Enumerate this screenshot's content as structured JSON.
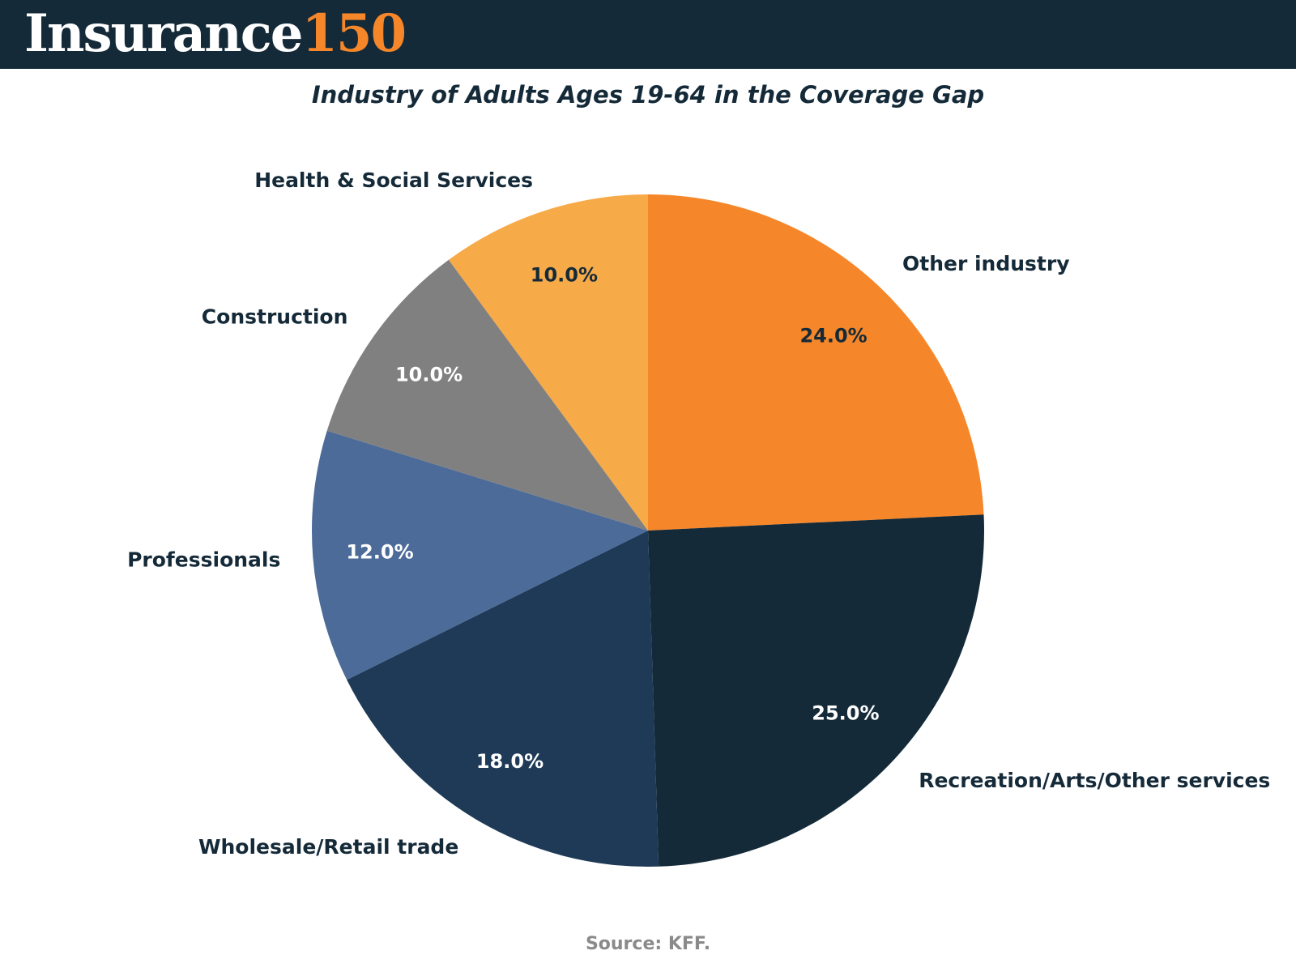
{
  "header": {
    "logo_word": "Insurance",
    "logo_number": "150",
    "background_color": "#152a38",
    "logo_word_color": "#ffffff",
    "logo_number_color": "#f5872a"
  },
  "chart_data": {
    "type": "pie",
    "title": "Industry of Adults Ages 19-64 in the Coverage Gap",
    "start": "12 o'clock, clockwise",
    "slices": [
      {
        "label": "Other industry",
        "value": 24.0,
        "value_label": "24.0%",
        "color": "#f5872a",
        "value_label_color": "#152a38"
      },
      {
        "label": "Recreation/Arts/Other services",
        "value": 25.0,
        "value_label": "25.0%",
        "color": "#152a38",
        "value_label_color": "#ffffff"
      },
      {
        "label": "Wholesale/Retail trade",
        "value": 18.0,
        "value_label": "18.0%",
        "color": "#1e3a57",
        "value_label_color": "#ffffff"
      },
      {
        "label": "Professionals",
        "value": 12.0,
        "value_label": "12.0%",
        "color": "#4c6b99",
        "value_label_color": "#ffffff"
      },
      {
        "label": "Construction",
        "value": 10.0,
        "value_label": "10.0%",
        "color": "#808080",
        "value_label_color": "#ffffff"
      },
      {
        "label": "Health & Social Services",
        "value": 10.0,
        "value_label": "10.0%",
        "color": "#f6aa48",
        "value_label_color": "#152a38"
      }
    ],
    "category_label_color": "#152a38"
  },
  "footer": {
    "source": "Source: KFF."
  }
}
